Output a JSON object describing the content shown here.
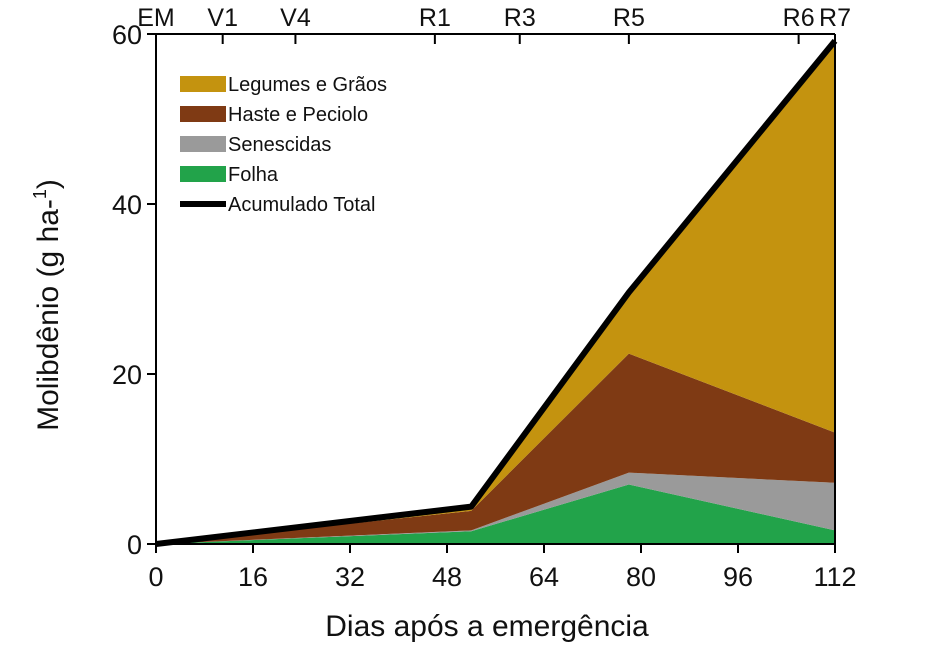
{
  "chart_data": {
    "type": "area",
    "xlabel": "Dias após a emergência",
    "ylabel": "Molibdênio (g ha⁻¹)",
    "xlim": [
      0,
      112
    ],
    "ylim": [
      0,
      60
    ],
    "x_ticks": [
      0,
      16,
      32,
      48,
      64,
      80,
      96,
      112
    ],
    "y_ticks": [
      0,
      20,
      40,
      60
    ],
    "stages": [
      {
        "label": "EM",
        "x": 0
      },
      {
        "label": "V1",
        "x": 11
      },
      {
        "label": "V4",
        "x": 23
      },
      {
        "label": "R1",
        "x": 46
      },
      {
        "label": "R3",
        "x": 60
      },
      {
        "label": "R5",
        "x": 78
      },
      {
        "label": "R6",
        "x": 106
      },
      {
        "label": "R7",
        "x": 112
      }
    ],
    "x": [
      0,
      52,
      78,
      112
    ],
    "series": [
      {
        "name": "Folha",
        "color": "#22a34a",
        "values": [
          0,
          1.5,
          7.0,
          1.6
        ]
      },
      {
        "name": "Senescidas",
        "color": "#9a9a9a",
        "values": [
          0,
          0.1,
          1.4,
          5.6
        ]
      },
      {
        "name": "Haste e Peciolo",
        "color": "#7f3a14",
        "values": [
          0,
          2.3,
          14.0,
          5.9
        ]
      },
      {
        "name": "Legumes e Grãos",
        "color": "#c4930f",
        "values": [
          0,
          0.5,
          7.2,
          46.1
        ]
      }
    ],
    "total": {
      "name": "Acumulado Total",
      "color": "#000000",
      "values": [
        0,
        4.4,
        29.6,
        59.2
      ]
    },
    "legend_order": [
      "Legumes e Grãos",
      "Haste e Peciolo",
      "Senescidas",
      "Folha",
      "Acumulado Total"
    ],
    "legend_position": "top-left"
  }
}
